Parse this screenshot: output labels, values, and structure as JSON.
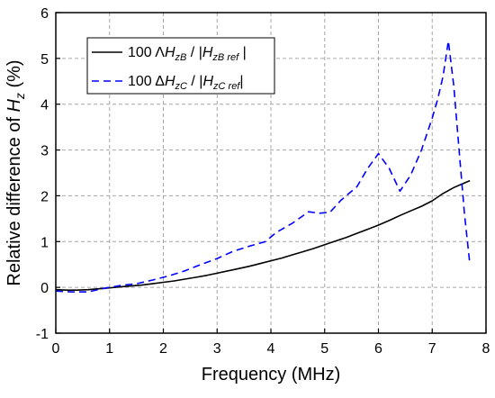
{
  "chart_data": {
    "type": "line",
    "xlabel": "Frequency (MHz)",
    "ylabel_prefix": "Relative difference of ",
    "ylabel_var": "H",
    "ylabel_sub": "z",
    "ylabel_suffix": " (%)",
    "xlim": [
      0,
      8
    ],
    "ylim": [
      -1,
      6
    ],
    "xticks": [
      0,
      1,
      2,
      3,
      4,
      5,
      6,
      7,
      8
    ],
    "yticks": [
      -1,
      0,
      1,
      2,
      3,
      4,
      5,
      6
    ],
    "grid": true,
    "legend_position": "top-left",
    "series": [
      {
        "legend": {
          "prefix": "100 ",
          "delta": "Λ",
          "var": "H",
          "sub": "zB",
          "mid": " / |",
          "var2": "H",
          "sub2": "zB ref",
          "end": " |"
        },
        "style": "solid",
        "color": "#000000",
        "x": [
          0,
          0.2,
          0.4,
          0.6,
          0.8,
          1.0,
          1.2,
          1.4,
          1.6,
          1.8,
          2.0,
          2.2,
          2.4,
          2.6,
          2.8,
          3.0,
          3.2,
          3.4,
          3.6,
          3.8,
          4.0,
          4.2,
          4.4,
          4.6,
          4.8,
          5.0,
          5.2,
          5.4,
          5.6,
          5.8,
          6.0,
          6.2,
          6.4,
          6.6,
          6.8,
          7.0,
          7.2,
          7.4,
          7.7
        ],
        "y": [
          -0.05,
          -0.06,
          -0.06,
          -0.05,
          -0.03,
          -0.01,
          0.01,
          0.03,
          0.05,
          0.08,
          0.11,
          0.14,
          0.18,
          0.22,
          0.26,
          0.31,
          0.36,
          0.41,
          0.46,
          0.52,
          0.58,
          0.64,
          0.71,
          0.78,
          0.85,
          0.93,
          1.01,
          1.09,
          1.18,
          1.27,
          1.36,
          1.46,
          1.57,
          1.67,
          1.77,
          1.89,
          2.05,
          2.18,
          2.33
        ]
      },
      {
        "legend": {
          "prefix": "100 ",
          "delta": "Δ",
          "var": "H",
          "sub": "zC",
          "mid": " / |",
          "var2": "H",
          "sub2": "zC ref",
          "end": "|"
        },
        "style": "dashed",
        "color": "#0000ff",
        "x": [
          0,
          0.3,
          0.6,
          0.9,
          1.2,
          1.5,
          1.8,
          2.1,
          2.4,
          2.7,
          3.0,
          3.3,
          3.6,
          3.9,
          4.1,
          4.4,
          4.7,
          4.9,
          5.1,
          5.3,
          5.6,
          5.8,
          6.0,
          6.2,
          6.4,
          6.6,
          6.8,
          7.0,
          7.1,
          7.2,
          7.3,
          7.4,
          7.5,
          7.6,
          7.7
        ],
        "y": [
          -0.08,
          -0.1,
          -0.1,
          -0.02,
          0.04,
          0.08,
          0.16,
          0.25,
          0.36,
          0.5,
          0.63,
          0.79,
          0.9,
          1.0,
          1.2,
          1.4,
          1.65,
          1.62,
          1.64,
          1.9,
          2.2,
          2.6,
          2.92,
          2.6,
          2.1,
          2.45,
          3.0,
          3.7,
          4.1,
          4.6,
          5.38,
          4.4,
          3.0,
          1.6,
          0.5
        ]
      }
    ]
  }
}
